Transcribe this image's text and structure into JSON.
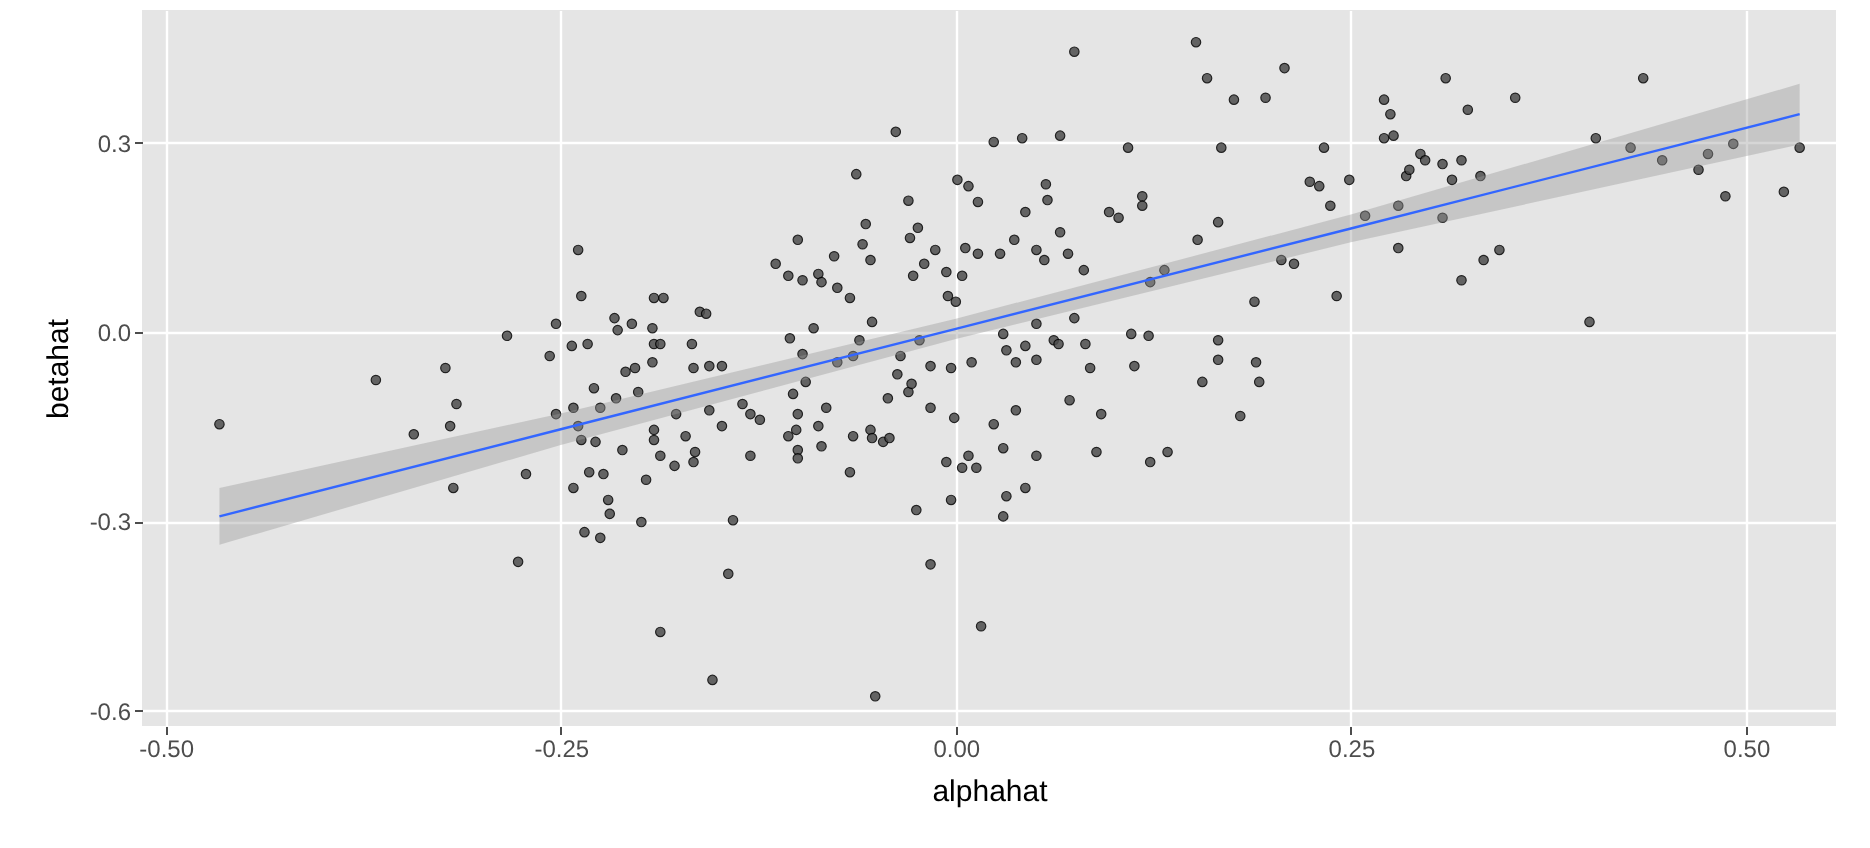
{
  "chart_data": {
    "type": "scatter",
    "xlabel": "alphahat",
    "ylabel": "betahat",
    "xlim": [
      -0.515,
      0.557
    ],
    "ylim": [
      -0.624,
      0.51
    ],
    "xticks": [
      {
        "value": -0.5,
        "label": "-0.50"
      },
      {
        "value": -0.25,
        "label": "-0.25"
      },
      {
        "value": 0,
        "label": "0.00"
      },
      {
        "value": 0.25,
        "label": "0.25"
      },
      {
        "value": 0.5,
        "label": "0.50"
      }
    ],
    "yticks": [
      {
        "value": -0.6,
        "label": "-0.6"
      },
      {
        "value": -0.3,
        "label": "-0.3"
      },
      {
        "value": 0,
        "label": "0.0"
      },
      {
        "value": 0.3,
        "label": "0.3"
      }
    ],
    "grid": true,
    "series": [
      {
        "marker": "circle",
        "color": "#4d4d4d",
        "x": [
          -0.239,
          -0.237,
          -0.284,
          -0.253,
          -0.257,
          -0.243,
          -0.233,
          -0.216,
          -0.214,
          -0.205,
          -0.192,
          -0.191,
          -0.191,
          -0.185,
          -0.209,
          -0.203,
          -0.192,
          -0.323,
          -0.367,
          -0.466,
          -0.343,
          -0.32,
          -0.316,
          -0.318,
          -0.277,
          -0.272,
          -0.253,
          -0.242,
          -0.239,
          -0.237,
          -0.229,
          -0.225,
          -0.228,
          -0.215,
          -0.211,
          -0.201,
          -0.242,
          -0.232,
          -0.223,
          -0.22,
          -0.219,
          -0.235,
          -0.225,
          -0.199,
          -0.196,
          -0.191,
          -0.191,
          -0.187,
          -0.187,
          -0.141,
          -0.144,
          -0.154,
          -0.051,
          -0.016,
          0.016,
          -0.025,
          -0.003,
          0.03,
          0.032,
          0.044,
          -0.006,
          0.008,
          0.004,
          0.013,
          0.03,
          0.051,
          0.024,
          0.038,
          -0.001,
          -0.016,
          0.072,
          0.092,
          0.089,
          0.123,
          0.134,
          0.156,
          0.18,
          -0.067,
          -0.065,
          -0.054,
          -0.053,
          -0.046,
          -0.042,
          -0.043,
          -0.03,
          -0.028,
          -0.037,
          -0.085,
          -0.087,
          -0.1,
          -0.1,
          -0.1,
          -0.106,
          -0.101,
          -0.082,
          -0.103,
          -0.095,
          -0.13,
          -0.124,
          -0.13,
          -0.135,
          -0.148,
          -0.156,
          -0.171,
          -0.177,
          -0.166,
          -0.178,
          -0.165,
          -0.038,
          -0.063,
          -0.1,
          -0.114,
          -0.106,
          -0.097,
          -0.087,
          -0.085,
          -0.077,
          -0.075,
          -0.067,
          -0.057,
          -0.059,
          -0.054,
          -0.03,
          -0.029,
          -0.024,
          -0.027,
          -0.02,
          -0.013,
          -0.006,
          -0.005,
          0.0,
          0.004,
          0.001,
          0.008,
          0.014,
          0.006,
          0.014,
          0.024,
          0.042,
          0.066,
          0.075,
          0.057,
          0.058,
          0.044,
          0.037,
          0.028,
          0.051,
          0.056,
          0.066,
          0.071,
          0.081,
          0.075,
          0.051,
          0.03,
          0.032,
          0.044,
          0.038,
          0.051,
          0.062,
          0.065,
          0.082,
          0.085,
          0.111,
          0.122,
          0.113,
          0.097,
          0.103,
          0.109,
          0.118,
          0.118,
          0.123,
          0.132,
          0.153,
          0.166,
          0.168,
          0.176,
          0.159,
          0.152,
          0.166,
          0.166,
          0.189,
          0.19,
          -0.053,
          -0.061,
          -0.09,
          -0.105,
          -0.097,
          -0.075,
          -0.065,
          -0.035,
          -0.023,
          -0.016,
          -0.003,
          0.01,
          -0.162,
          -0.158,
          -0.167,
          -0.166,
          -0.156,
          -0.148,
          -0.187,
          0.208,
          0.196,
          0.233,
          0.224,
          0.23,
          0.237,
          0.249,
          0.259,
          0.271,
          0.275,
          0.271,
          0.277,
          0.28,
          0.28,
          0.285,
          0.287,
          0.294,
          0.297,
          0.308,
          0.314,
          0.32,
          0.332,
          0.324,
          0.31,
          0.354,
          0.308,
          0.32,
          0.334,
          0.344,
          0.241,
          0.206,
          0.214,
          0.401,
          0.405,
          0.427,
          0.435,
          0.447,
          0.47,
          0.476,
          0.492,
          0.487,
          0.524,
          0.534,
          0.192
        ],
        "values": [
          0.13,
          0.057,
          -0.006,
          0.013,
          -0.038,
          -0.022,
          -0.019,
          0.022,
          0.003,
          0.013,
          0.006,
          -0.019,
          0.054,
          0.054,
          -0.063,
          -0.057,
          -0.048,
          -0.057,
          -0.076,
          -0.146,
          -0.162,
          -0.149,
          -0.114,
          -0.247,
          -0.364,
          -0.225,
          -0.13,
          -0.12,
          -0.149,
          -0.171,
          -0.089,
          -0.12,
          -0.174,
          -0.105,
          -0.187,
          -0.095,
          -0.247,
          -0.222,
          -0.225,
          -0.266,
          -0.288,
          -0.317,
          -0.326,
          -0.301,
          -0.234,
          -0.155,
          -0.171,
          -0.196,
          -0.475,
          -0.298,
          -0.383,
          -0.551,
          -0.577,
          -0.368,
          -0.466,
          -0.282,
          -0.266,
          -0.292,
          -0.26,
          -0.247,
          -0.206,
          -0.196,
          -0.215,
          -0.215,
          -0.184,
          -0.196,
          -0.146,
          -0.124,
          -0.136,
          -0.12,
          -0.108,
          -0.13,
          -0.19,
          -0.206,
          -0.19,
          -0.079,
          -0.133,
          -0.222,
          -0.165,
          -0.155,
          -0.168,
          -0.174,
          -0.168,
          -0.105,
          -0.095,
          -0.082,
          -0.067,
          -0.181,
          -0.149,
          -0.13,
          -0.187,
          -0.2,
          -0.165,
          -0.155,
          -0.12,
          -0.098,
          -0.079,
          -0.196,
          -0.139,
          -0.13,
          -0.114,
          -0.149,
          -0.124,
          -0.165,
          -0.13,
          -0.206,
          -0.212,
          -0.19,
          0.317,
          0.25,
          0.146,
          0.108,
          0.089,
          0.082,
          0.092,
          0.079,
          0.12,
          0.07,
          0.054,
          0.171,
          0.139,
          0.114,
          0.208,
          0.149,
          0.165,
          0.089,
          0.108,
          0.13,
          0.095,
          0.057,
          0.048,
          0.089,
          0.241,
          0.231,
          0.206,
          0.133,
          0.124,
          0.301,
          0.307,
          0.311,
          0.444,
          0.234,
          0.209,
          0.19,
          0.146,
          0.124,
          0.13,
          0.114,
          0.158,
          0.124,
          0.098,
          0.022,
          0.013,
          -0.003,
          -0.029,
          -0.022,
          -0.048,
          -0.044,
          -0.013,
          -0.019,
          -0.019,
          -0.057,
          -0.003,
          -0.006,
          -0.054,
          0.19,
          0.181,
          0.292,
          0.215,
          0.2,
          0.079,
          0.098,
          0.146,
          0.174,
          0.292,
          0.368,
          0.402,
          0.459,
          -0.013,
          -0.044,
          0.048,
          -0.048,
          0.016,
          -0.013,
          0.006,
          -0.01,
          -0.035,
          -0.048,
          -0.038,
          -0.038,
          -0.013,
          -0.054,
          -0.057,
          -0.048,
          0.032,
          0.029,
          -0.019,
          -0.057,
          -0.054,
          -0.054,
          -0.019,
          0.418,
          0.371,
          0.292,
          0.238,
          0.231,
          0.2,
          0.241,
          0.184,
          0.368,
          0.345,
          0.307,
          0.311,
          0.2,
          0.133,
          0.247,
          0.257,
          0.282,
          0.272,
          0.266,
          0.241,
          0.272,
          0.247,
          0.352,
          0.402,
          0.371,
          0.181,
          0.082,
          0.114,
          0.13,
          0.057,
          0.114,
          0.108,
          0.016,
          0.307,
          0.292,
          0.402,
          0.272,
          0.257,
          0.282,
          0.298,
          0.215,
          0.222,
          0.292,
          -0.079
        ]
      },
      {
        "type": "line",
        "color": "#3366ff",
        "x": [
          -0.466,
          -0.25,
          0,
          0.25,
          0.534
        ],
        "values": [
          -0.292,
          -0.154,
          0.005,
          0.164,
          0.345
        ],
        "lower": [
          -0.337,
          -0.179,
          -0.011,
          0.142,
          0.297
        ],
        "upper": [
          -0.247,
          -0.129,
          0.021,
          0.186,
          0.393
        ]
      }
    ]
  }
}
